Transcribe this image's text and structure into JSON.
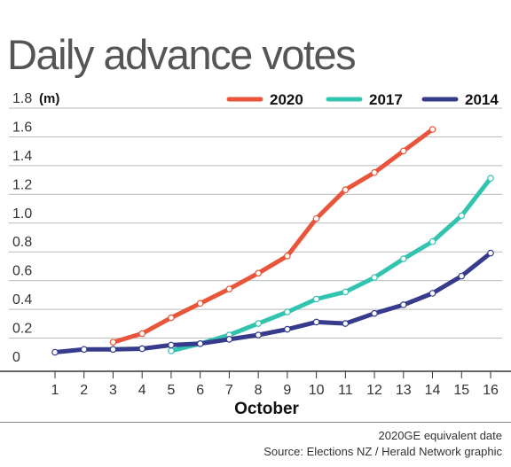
{
  "title": "Daily advance votes",
  "footer": {
    "note": "2020GE equivalent date",
    "source": "Source: Elections NZ / Herald Network graphic"
  },
  "colors": {
    "2020": "#e8553a",
    "2017": "#33c4b0",
    "2014": "#363b8c",
    "grid": "#bbbbbb",
    "axis": "#333333"
  },
  "chart_data": {
    "type": "line",
    "unit": "(m)",
    "xlabel": "October",
    "ylabel": "",
    "x": [
      1,
      2,
      3,
      4,
      5,
      6,
      7,
      8,
      9,
      10,
      11,
      12,
      13,
      14,
      15,
      16
    ],
    "xlim": [
      1,
      16
    ],
    "ylim": [
      0,
      1.8
    ],
    "yticks": [
      0,
      0.2,
      0.4,
      0.6,
      0.8,
      1.0,
      1.2,
      1.4,
      1.6,
      1.8
    ],
    "ytick_labels": [
      "0",
      "0.2",
      "0.4",
      "0.6",
      "0.8",
      "1.0",
      "1.2",
      "1.4",
      "1.6",
      "1.8"
    ],
    "grid": true,
    "legend_position": "top-right",
    "series": [
      {
        "name": "2020",
        "x": [
          3,
          4,
          5,
          6,
          7,
          8,
          9,
          10,
          11,
          12,
          13,
          14
        ],
        "values": [
          0.11,
          0.17,
          0.28,
          0.38,
          0.48,
          0.59,
          0.71,
          0.97,
          1.17,
          1.29,
          1.44,
          1.59
        ]
      },
      {
        "name": "2017",
        "x": [
          5,
          6,
          7,
          8,
          9,
          10,
          11,
          12,
          13,
          14,
          15,
          16
        ],
        "values": [
          0.05,
          0.1,
          0.16,
          0.24,
          0.32,
          0.41,
          0.46,
          0.56,
          0.69,
          0.81,
          0.99,
          1.25
        ]
      },
      {
        "name": "2014",
        "x": [
          1,
          2,
          3,
          4,
          5,
          6,
          7,
          8,
          9,
          10,
          11,
          12,
          13,
          14,
          15,
          16
        ],
        "values": [
          0.04,
          0.06,
          0.06,
          0.065,
          0.09,
          0.1,
          0.13,
          0.16,
          0.2,
          0.25,
          0.24,
          0.31,
          0.37,
          0.45,
          0.57,
          0.73
        ]
      }
    ]
  }
}
